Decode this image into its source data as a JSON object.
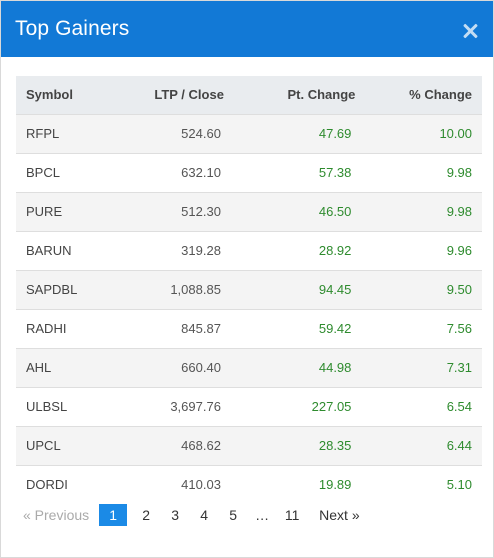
{
  "header": {
    "title": "Top Gainers",
    "close_icon": "close-icon"
  },
  "table": {
    "columns": [
      "Symbol",
      "LTP / Close",
      "Pt. Change",
      "% Change"
    ],
    "rows": [
      {
        "symbol": "RFPL",
        "ltp": "524.60",
        "pt_change": "47.69",
        "pct_change": "10.00"
      },
      {
        "symbol": "BPCL",
        "ltp": "632.10",
        "pt_change": "57.38",
        "pct_change": "9.98"
      },
      {
        "symbol": "PURE",
        "ltp": "512.30",
        "pt_change": "46.50",
        "pct_change": "9.98"
      },
      {
        "symbol": "BARUN",
        "ltp": "319.28",
        "pt_change": "28.92",
        "pct_change": "9.96"
      },
      {
        "symbol": "SAPDBL",
        "ltp": "1,088.85",
        "pt_change": "94.45",
        "pct_change": "9.50"
      },
      {
        "symbol": "RADHI",
        "ltp": "845.87",
        "pt_change": "59.42",
        "pct_change": "7.56"
      },
      {
        "symbol": "AHL",
        "ltp": "660.40",
        "pt_change": "44.98",
        "pct_change": "7.31"
      },
      {
        "symbol": "ULBSL",
        "ltp": "3,697.76",
        "pt_change": "227.05",
        "pct_change": "6.54"
      },
      {
        "symbol": "UPCL",
        "ltp": "468.62",
        "pt_change": "28.35",
        "pct_change": "6.44"
      },
      {
        "symbol": "DORDI",
        "ltp": "410.03",
        "pt_change": "19.89",
        "pct_change": "5.10"
      }
    ]
  },
  "pagination": {
    "previous_label": "«  Previous",
    "pages": [
      "1",
      "2",
      "3",
      "4",
      "5"
    ],
    "ellipsis": "…",
    "last_page": "11",
    "active_page": "1",
    "next_label": "Next  »"
  },
  "colors": {
    "header_bg": "#1279d6",
    "positive": "#2e8b2e",
    "active_page_bg": "#1b8ae6"
  }
}
